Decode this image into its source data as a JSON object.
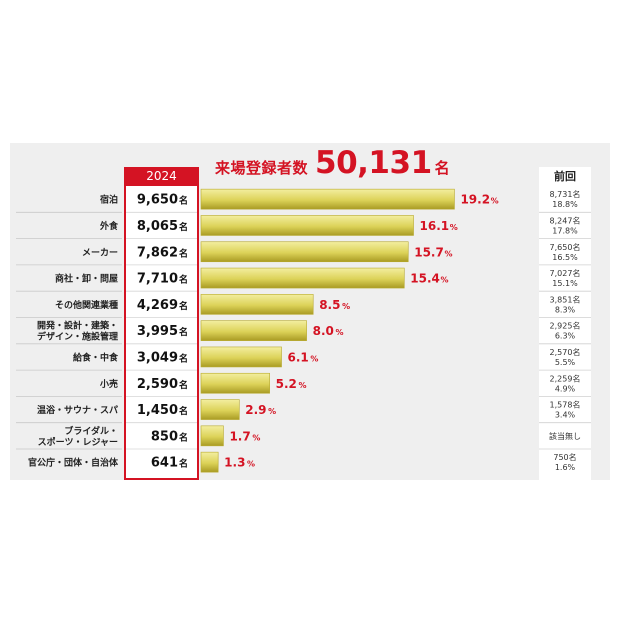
{
  "title": {
    "label": "来場登録者数",
    "number": "50,131",
    "unit": "名"
  },
  "year_header": "2024",
  "prev_header": "前回",
  "chart_data": {
    "type": "bar",
    "orientation": "horizontal",
    "title": "来場登録者数 50,131名",
    "categories": [
      [
        "宿泊"
      ],
      [
        "外食"
      ],
      [
        "メーカー"
      ],
      [
        "商社・卸・問屋"
      ],
      [
        "その他関連業種"
      ],
      [
        "開発・設計・建築・",
        "デザイン・施設管理"
      ],
      [
        "給食・中食"
      ],
      [
        "小売"
      ],
      [
        "温浴・サウナ・スパ"
      ],
      [
        "ブライダル・",
        "スポーツ・レジャー"
      ],
      [
        "官公庁・団体・自治体"
      ]
    ],
    "counts": [
      "9,650",
      "8,065",
      "7,862",
      "7,710",
      "4,269",
      "3,995",
      "3,049",
      "2,590",
      "1,450",
      "850",
      "641"
    ],
    "count_unit": "名",
    "values": [
      19.2,
      16.1,
      15.7,
      15.4,
      8.5,
      8.0,
      6.1,
      5.2,
      2.9,
      1.7,
      1.3
    ],
    "value_unit": "%",
    "previous": [
      [
        "8,731名",
        "18.8%"
      ],
      [
        "8,247名",
        "17.8%"
      ],
      [
        "7,650名",
        "16.5%"
      ],
      [
        "7,027名",
        "15.1%"
      ],
      [
        "3,851名",
        "8.3%"
      ],
      [
        "2,925名",
        "6.3%"
      ],
      [
        "2,570名",
        "5.5%"
      ],
      [
        "2,259名",
        "4.9%"
      ],
      [
        "1,578名",
        "3.4%"
      ],
      [
        "該当無し"
      ],
      [
        "750名",
        "1.6%"
      ]
    ],
    "colors": {
      "bar_light": "#f3eea0",
      "bar_mid": "#dcd258",
      "bar_dark": "#a99b24",
      "accent": "#d41323"
    }
  }
}
